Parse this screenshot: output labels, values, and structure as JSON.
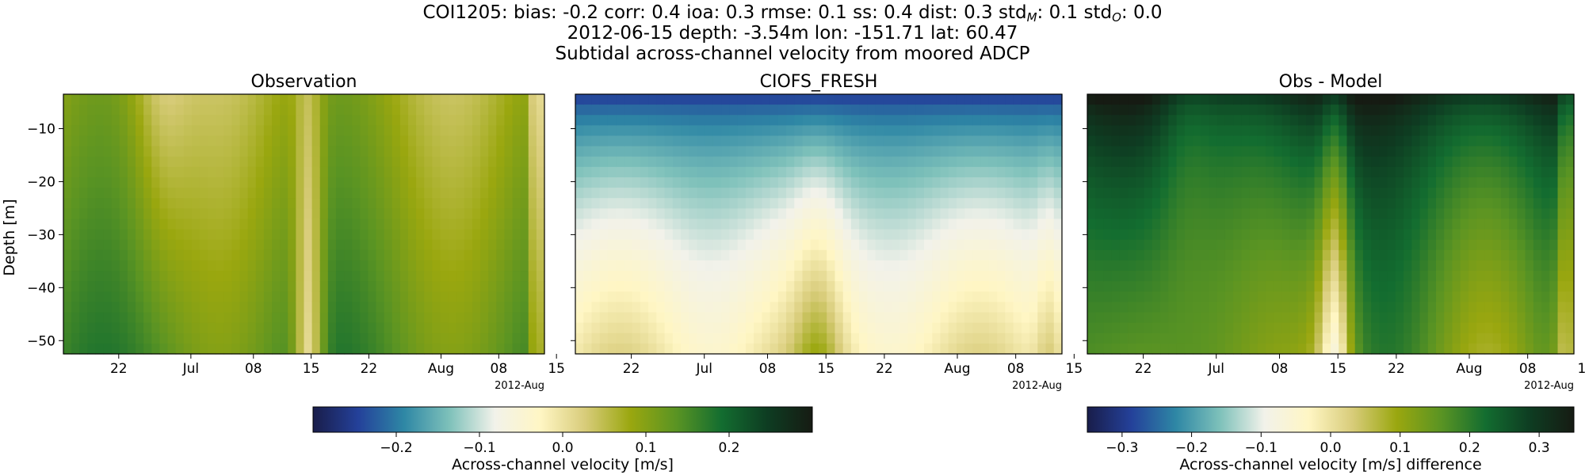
{
  "title": {
    "line1_prefix": "COI1205: bias: -0.2  corr: 0.4  ioa: 0.3  rmse: 0.1  ss: 0.4  dist: 0.3  std",
    "line1_sub_m": "M",
    "line1_mid": ": 0.1  std",
    "line1_sub_o": "O",
    "line1_end": ": 0.0",
    "line2": "2012-06-15 depth: -3.54m lon: -151.71 lat: 60.47",
    "line3": "Subtidal across-channel velocity from moored ADCP"
  },
  "colors": {
    "cmap_stops": [
      "#191d4a",
      "#24419a",
      "#2e87a5",
      "#7ec1ba",
      "#f2f2ea",
      "#fff6c4",
      "#d8cc7a",
      "#9aa70f",
      "#5a9423",
      "#136d30",
      "#0e3d22",
      "#161b13"
    ]
  },
  "chart_data": [
    {
      "type": "heatmap",
      "title": "Observation",
      "xlabel": "",
      "ylabel": "Depth [m]",
      "x_ticks": [
        "22",
        "Jul",
        "08",
        "15",
        "22",
        "Aug",
        "08",
        "15"
      ],
      "x_offset_label": "2012-Aug",
      "x_range": [
        "2012-06-15",
        "2012-08-14"
      ],
      "y_ticks": [
        -10,
        -20,
        -30,
        -40,
        -50
      ],
      "ylim": [
        -52.5,
        -3.5
      ],
      "vlim": [
        -0.3,
        0.3
      ],
      "values_summary": {
        "typical": 0.1,
        "min": -0.05,
        "max": 0.2
      }
    },
    {
      "type": "heatmap",
      "title": "CIOFS_FRESH",
      "xlabel": "",
      "x_ticks": [
        "22",
        "Jul",
        "08",
        "15",
        "22",
        "Aug",
        "08",
        "15"
      ],
      "x_offset_label": "2012-Aug",
      "x_range": [
        "2012-06-15",
        "2012-08-14"
      ],
      "y_ticks": [
        -10,
        -20,
        -30,
        -40,
        -50
      ],
      "ylim": [
        -52.5,
        -3.5
      ],
      "vlim": [
        -0.3,
        0.3
      ],
      "values_summary": {
        "surface": -0.3,
        "bottom": 0.0,
        "max": 0.1
      }
    },
    {
      "type": "heatmap",
      "title": "Obs - Model",
      "xlabel": "",
      "x_ticks": [
        "22",
        "Jul",
        "08",
        "15",
        "22",
        "Aug",
        "08",
        "15"
      ],
      "x_offset_label": "2012-Aug",
      "x_range": [
        "2012-06-15",
        "2012-08-14"
      ],
      "y_ticks": [
        -10,
        -20,
        -30,
        -40,
        -50
      ],
      "ylim": [
        -52.5,
        -3.5
      ],
      "vlim": [
        -0.35,
        0.35
      ],
      "values_summary": {
        "typical": 0.2,
        "surface": 0.35,
        "min": -0.05
      }
    }
  ],
  "colorbars": [
    {
      "label": "Across-channel velocity [m/s]",
      "ticks": [
        "−0.2",
        "−0.1",
        "0.0",
        "0.1",
        "0.2"
      ],
      "tick_values": [
        -0.2,
        -0.1,
        0.0,
        0.1,
        0.2
      ],
      "range": [
        -0.3,
        0.3
      ]
    },
    {
      "label": "Across-channel velocity [m/s] difference",
      "ticks": [
        "−0.3",
        "−0.2",
        "−0.1",
        "0.0",
        "0.1",
        "0.2",
        "0.3"
      ],
      "tick_values": [
        -0.3,
        -0.2,
        -0.1,
        0.0,
        0.1,
        0.2,
        0.3
      ],
      "range": [
        -0.35,
        0.35
      ]
    }
  ],
  "y_tick_labels": [
    "−10",
    "−20",
    "−30",
    "−40",
    "−50"
  ]
}
